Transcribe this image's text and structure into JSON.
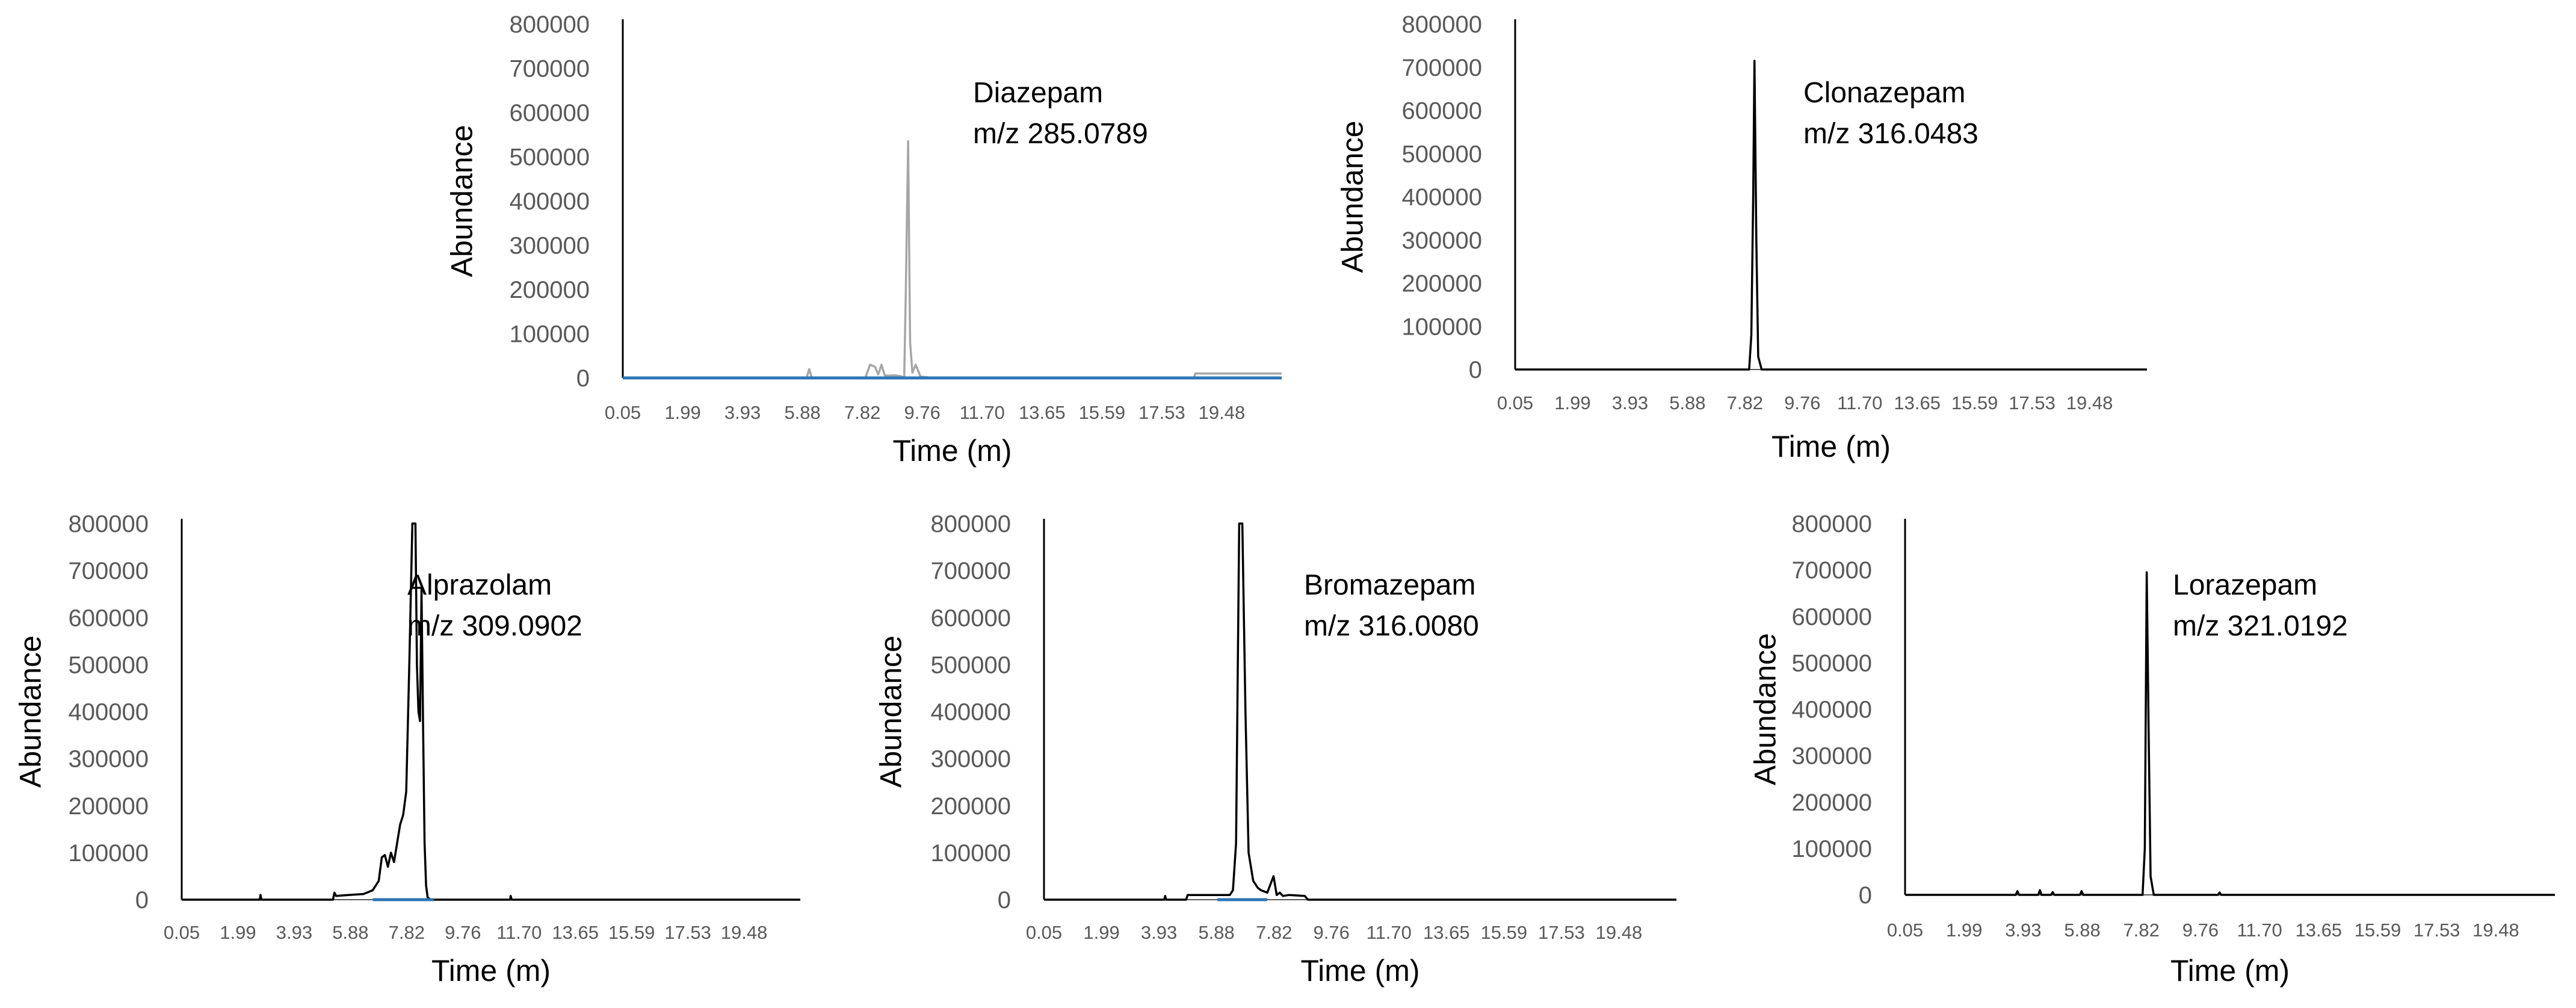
{
  "chart_data": [
    {
      "type": "line",
      "compound": "Diazepam",
      "annotation_line1": "Diazepam",
      "annotation_line2": "m/z 285.0789",
      "xlabel": "Time (m)",
      "ylabel": "Abundance",
      "x_tick_labels": [
        "0.05",
        "1.99",
        "3.93",
        "5.88",
        "7.82",
        "9.76",
        "11.70",
        "13.65",
        "15.59",
        "17.53",
        "19.48"
      ],
      "y_tick_labels": [
        "0",
        "100000",
        "200000",
        "300000",
        "400000",
        "500000",
        "600000",
        "700000",
        "800000"
      ],
      "xlim": [
        0.05,
        20.3
      ],
      "ylim": [
        0,
        800000
      ],
      "series": [
        {
          "name": "Diazepam m/z 285.0789",
          "color": "#a6a6a6",
          "x": [
            0.05,
            5.7,
            5.78,
            5.86,
            7.5,
            7.65,
            7.8,
            7.9,
            8.0,
            8.1,
            8.2,
            8.4,
            8.6,
            8.7,
            8.75,
            8.82,
            8.88,
            8.95,
            9.05,
            9.2,
            9.6,
            17.6,
            17.65,
            20.3
          ],
          "y": [
            0,
            0,
            20000,
            0,
            0,
            30000,
            25000,
            8000,
            30000,
            6000,
            5000,
            6000,
            4000,
            0,
            200000,
            535000,
            80000,
            12000,
            30000,
            3000,
            0,
            0,
            10000,
            10000
          ]
        },
        {
          "name": "baseline",
          "color": "#2e75b6",
          "x": [
            0.05,
            20.3
          ],
          "y": [
            0,
            0
          ]
        }
      ]
    },
    {
      "type": "line",
      "compound": "Clonazepam",
      "annotation_line1": "Clonazepam",
      "annotation_line2": "m/z 316.0483",
      "xlabel": "Time (m)",
      "ylabel": "Abundance",
      "x_tick_labels": [
        "0.05",
        "1.99",
        "3.93",
        "5.88",
        "7.82",
        "9.76",
        "11.70",
        "13.65",
        "15.59",
        "17.53",
        "19.48"
      ],
      "y_tick_labels": [
        "0",
        "100000",
        "200000",
        "300000",
        "400000",
        "500000",
        "600000",
        "700000",
        "800000"
      ],
      "xlim": [
        0.05,
        20.3
      ],
      "ylim": [
        0,
        800000
      ],
      "series": [
        {
          "name": "Clonazepam m/z 316.0483",
          "color": "#000000",
          "x": [
            0.05,
            7.55,
            7.62,
            7.68,
            7.72,
            7.78,
            7.84,
            7.95,
            20.3
          ],
          "y": [
            0,
            0,
            80000,
            400000,
            715000,
            300000,
            30000,
            0,
            0
          ]
        }
      ]
    },
    {
      "type": "line",
      "compound": "Alprazolam",
      "annotation_line1": "Alprazolam",
      "annotation_line2": "m/z 309.0902",
      "xlabel": "Time (m)",
      "ylabel": "Abundance",
      "x_tick_labels": [
        "0.05",
        "1.99",
        "3.93",
        "5.88",
        "7.82",
        "9.76",
        "11.70",
        "13.65",
        "15.59",
        "17.53",
        "19.48"
      ],
      "y_tick_labels": [
        "0",
        "100000",
        "200000",
        "300000",
        "400000",
        "500000",
        "600000",
        "700000",
        "800000"
      ],
      "xlim": [
        0.05,
        20.3
      ],
      "ylim": [
        0,
        800000
      ],
      "series": [
        {
          "name": "Alprazolam m/z 309.0902",
          "color": "#000000",
          "x": [
            0.05,
            2.6,
            2.63,
            2.66,
            5.0,
            5.05,
            5.1,
            5.5,
            6.0,
            6.3,
            6.5,
            6.6,
            6.7,
            6.8,
            6.9,
            7.0,
            7.1,
            7.2,
            7.3,
            7.4,
            7.5,
            7.6,
            7.65,
            7.7,
            7.75,
            7.8,
            7.85,
            7.9,
            7.95,
            8.0,
            8.05,
            8.1,
            8.2,
            8.3,
            10.8,
            10.82,
            10.85,
            20.3
          ],
          "y": [
            0,
            0,
            10000,
            0,
            0,
            15000,
            8000,
            10000,
            12000,
            20000,
            40000,
            90000,
            95000,
            70000,
            100000,
            80000,
            120000,
            160000,
            180000,
            230000,
            500000,
            800000,
            800000,
            800000,
            500000,
            400000,
            380000,
            660000,
            380000,
            120000,
            30000,
            5000,
            0,
            0,
            0,
            8000,
            0,
            0
          ]
        },
        {
          "name": "baseline",
          "color": "#2e75b6",
          "x": [
            6.3,
            8.3
          ],
          "y": [
            0,
            0
          ]
        }
      ]
    },
    {
      "type": "line",
      "compound": "Bromazepam",
      "annotation_line1": "Bromazepam",
      "annotation_line2": "m/z 316.0080",
      "xlabel": "Time (m)",
      "ylabel": "Abundance",
      "x_tick_labels": [
        "0.05",
        "1.99",
        "3.93",
        "5.88",
        "7.82",
        "9.76",
        "11.70",
        "13.65",
        "15.59",
        "17.53",
        "19.48"
      ],
      "y_tick_labels": [
        "0",
        "100000",
        "200000",
        "300000",
        "400000",
        "500000",
        "600000",
        "700000",
        "800000"
      ],
      "xlim": [
        0.05,
        20.3
      ],
      "ylim": [
        0,
        800000
      ],
      "series": [
        {
          "name": "Bromazepam m/z 316.0080",
          "color": "#000000",
          "x": [
            0.05,
            3.9,
            3.93,
            3.96,
            4.6,
            4.65,
            6.0,
            6.1,
            6.2,
            6.3,
            6.4,
            6.5,
            6.6,
            6.75,
            6.9,
            7.0,
            7.2,
            7.4,
            7.45,
            7.5,
            7.6,
            7.7,
            7.9,
            8.4,
            8.5,
            20.3
          ],
          "y": [
            0,
            0,
            8000,
            0,
            0,
            10000,
            10000,
            20000,
            120000,
            800000,
            800000,
            400000,
            100000,
            40000,
            25000,
            20000,
            15000,
            50000,
            30000,
            10000,
            15000,
            8000,
            10000,
            8000,
            0,
            0
          ]
        },
        {
          "name": "baseline",
          "color": "#2e75b6",
          "x": [
            5.6,
            7.2
          ],
          "y": [
            0,
            0
          ]
        }
      ]
    },
    {
      "type": "line",
      "compound": "Lorazepam",
      "annotation_line1": "Lorazepam",
      "annotation_line2": "m/z 321.0192",
      "xlabel": "Time (m)",
      "ylabel": "Abundance",
      "x_tick_labels": [
        "0.05",
        "1.99",
        "3.93",
        "5.88",
        "7.82",
        "9.76",
        "11.70",
        "13.65",
        "15.59",
        "17.53",
        "19.48"
      ],
      "y_tick_labels": [
        "0",
        "100000",
        "200000",
        "300000",
        "400000",
        "500000",
        "600000",
        "700000",
        "800000"
      ],
      "xlim": [
        0.05,
        20.3
      ],
      "ylim": [
        0,
        800000
      ],
      "series": [
        {
          "name": "Lorazepam m/z 321.0192",
          "color": "#000000",
          "x": [
            0.05,
            3.5,
            3.55,
            3.6,
            4.2,
            4.25,
            4.3,
            4.6,
            4.65,
            4.7,
            5.5,
            5.55,
            5.6,
            7.45,
            7.52,
            7.58,
            7.64,
            7.7,
            7.8,
            9.8,
            9.85,
            9.9,
            20.3
          ],
          "y": [
            0,
            0,
            8000,
            0,
            0,
            10000,
            0,
            0,
            6000,
            0,
            0,
            8000,
            0,
            0,
            100000,
            695000,
            350000,
            40000,
            0,
            0,
            5000,
            0,
            0
          ]
        }
      ]
    }
  ]
}
